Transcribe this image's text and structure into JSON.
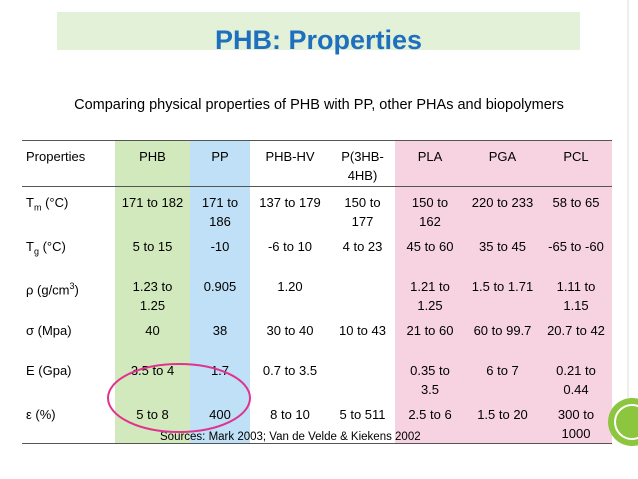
{
  "header": {
    "title": "PHB: Properties",
    "subtitle": "Comparing physical properties of PHB with PP, other PHAs and biopolymers",
    "source": "Sources: Mark 2003; Van de Velde & Kiekens 2002"
  },
  "table": {
    "columns": [
      "Properties",
      "PHB",
      "PP",
      "PHB-HV",
      "P(3HB-4HB)",
      "PLA",
      "PGA",
      "PCL"
    ],
    "rows": [
      {
        "label": {
          "main": "T",
          "sub": "m",
          "rest": " (°C)"
        },
        "cells": [
          "171 to 182",
          "171 to 186",
          "137 to 179",
          "150 to 177",
          "150 to 162",
          "220 to 233",
          "58 to 65"
        ]
      },
      {
        "label": {
          "main": "T",
          "sub": "g",
          "rest": " (°C)"
        },
        "cells": [
          "5 to 15",
          "-10",
          "-6 to 10",
          "4 to 23",
          "45 to 60",
          "35 to 45",
          "-65 to -60"
        ]
      },
      {
        "label": {
          "main": "ρ (g/cm",
          "sup": "3",
          "rest": ")"
        },
        "cells": [
          "1.23 to 1.25",
          "0.905",
          "1.20",
          null,
          "1.21 to 1.25",
          "1.5 to 1.71",
          "1.11 to 1.15"
        ]
      },
      {
        "label": {
          "main": "σ (Mpa)"
        },
        "cells": [
          "40",
          "38",
          "30 to 40",
          "10 to 43",
          "21 to 60",
          "60 to 99.7",
          "20.7 to 42"
        ]
      },
      {
        "label": {
          "main": "E (Gpa)"
        },
        "cells": [
          "3.5 to 4",
          "1.7",
          "0.7 to 3.5",
          null,
          "0.35 to 3.5",
          "6 to 7",
          "0.21 to 0.44"
        ]
      },
      {
        "label": {
          "main": "ε (%)"
        },
        "cells": [
          "5 to 8",
          "400",
          "8 to 10",
          "5 to 511",
          "2.5 to 6",
          "1.5 to 20",
          "300 to 1000"
        ]
      }
    ]
  }
}
